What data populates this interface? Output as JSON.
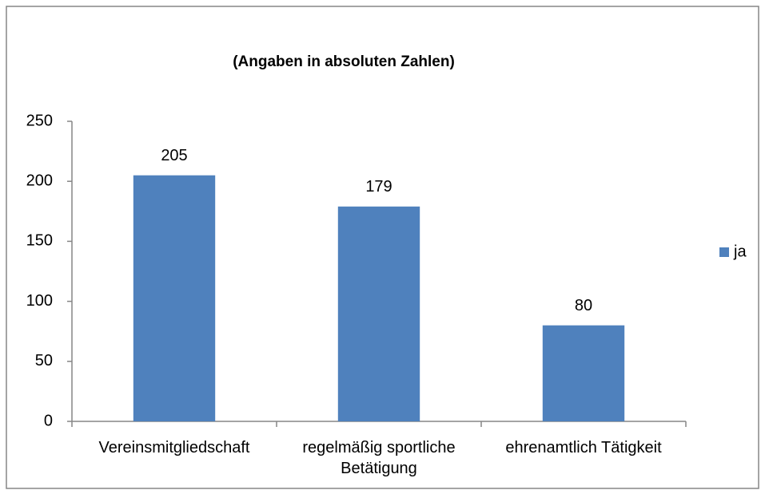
{
  "chart_data": {
    "type": "bar",
    "title": "(Angaben in absoluten Zahlen)",
    "categories": [
      "Vereinsmitgliedschaft",
      "regelmäßig sportliche Betätigung",
      "ehrenamtlich Tätigkeit"
    ],
    "series": [
      {
        "name": "ja",
        "color": "#4f81bd",
        "values": [
          205,
          179,
          80
        ]
      }
    ],
    "ylim": [
      0,
      250
    ],
    "yticks": [
      0,
      50,
      100,
      150,
      200,
      250
    ],
    "grid": false,
    "legend": "right"
  }
}
